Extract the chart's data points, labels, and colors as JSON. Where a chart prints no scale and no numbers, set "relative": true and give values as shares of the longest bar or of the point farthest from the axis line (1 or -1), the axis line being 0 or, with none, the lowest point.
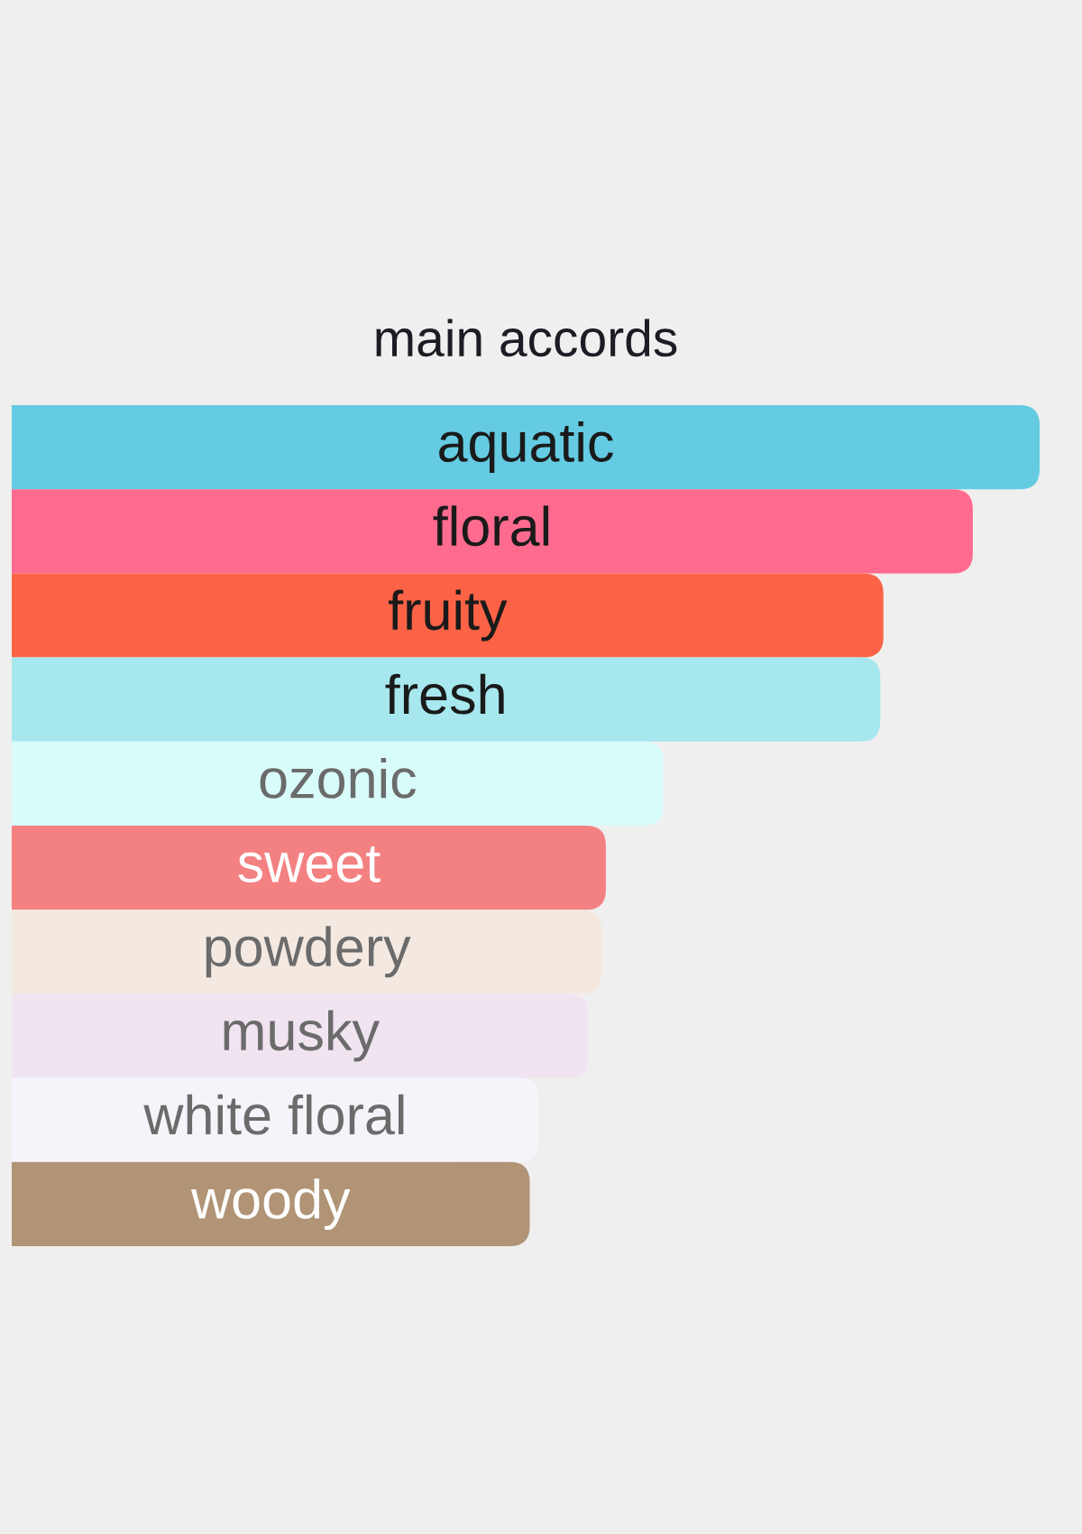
{
  "chart_data": {
    "type": "bar",
    "orientation": "horizontal",
    "relative": true,
    "title": "main accords",
    "categories": [
      "aquatic",
      "floral",
      "fruity",
      "fresh",
      "ozonic",
      "sweet",
      "powdery",
      "musky",
      "white floral",
      "woody"
    ],
    "values": [
      1,
      0.935,
      0.848,
      0.845,
      0.634,
      0.578,
      0.574,
      0.561,
      0.513,
      0.504
    ],
    "colors": [
      "#64cbe2",
      "#ff6b8f",
      "#fc6346",
      "#a6e8ee",
      "#d8fcfa",
      "#f48182",
      "#f3e9e0",
      "#f0e4f1",
      "#f4f5fa",
      "#b09475"
    ]
  }
}
